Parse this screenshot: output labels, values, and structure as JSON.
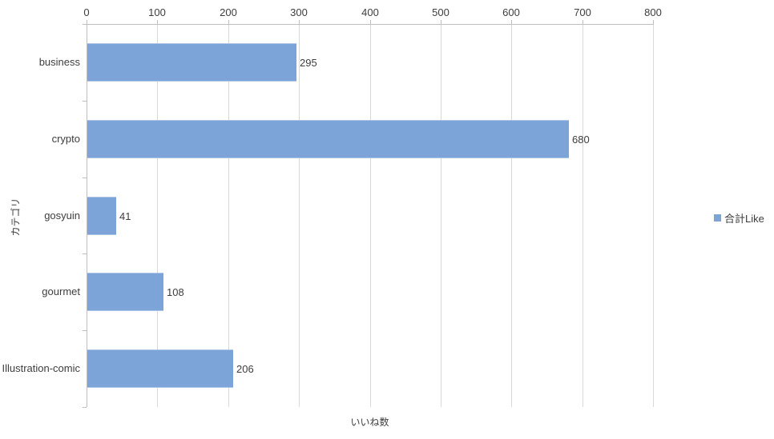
{
  "chart_data": {
    "type": "bar",
    "orientation": "horizontal",
    "categories": [
      "business",
      "crypto",
      "gosyuin",
      "gourmet",
      "Illustration-comic"
    ],
    "series": [
      {
        "name": "合計Like",
        "values": [
          295,
          680,
          41,
          108,
          206
        ]
      }
    ],
    "data_labels": [
      "295",
      "680",
      "41",
      "108",
      "206"
    ],
    "xlabel": "いいね数",
    "ylabel": "カテゴリ",
    "xlim": [
      0,
      800
    ],
    "xticks": [
      0,
      100,
      200,
      300,
      400,
      500,
      600,
      700,
      800
    ],
    "grid": true,
    "legend_position": "right"
  },
  "style": {
    "bar_fill": "#7da4d9",
    "bar_border": "#adc5e8",
    "gridline_color": "#d9d9d9",
    "axis_line_color": "#bfbfbf",
    "text_color": "#3d3d3d",
    "background": "#ffffff"
  }
}
